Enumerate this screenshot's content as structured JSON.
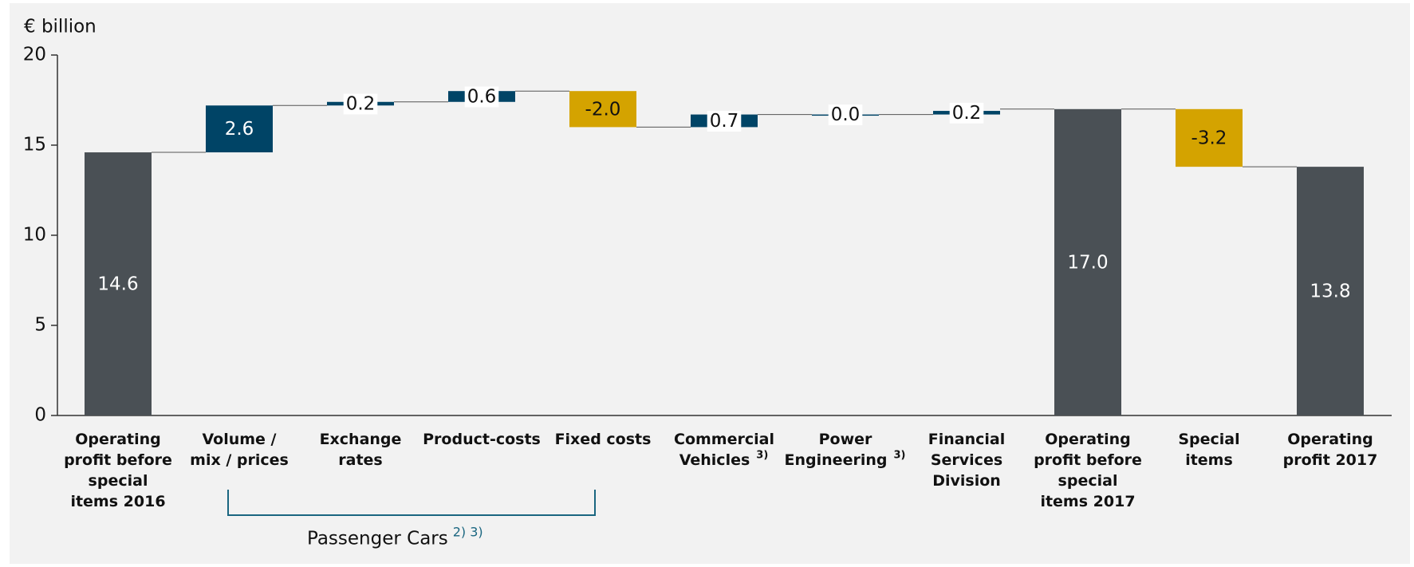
{
  "chart_data": {
    "type": "waterfall",
    "y_label": "€ billion",
    "categories": [
      "Operating profit before special items 2016",
      "Volume / mix / prices",
      "Exchange rates",
      "Product-costs",
      "Fixed costs",
      "Commercial Vehicles",
      "Power Engineering",
      "Financial Services Division",
      "Operating profit before special items 2017",
      "Special items",
      "Operating profit 2017"
    ],
    "category_notes": [
      null,
      null,
      null,
      null,
      null,
      "3)",
      "3)",
      null,
      null,
      null,
      null
    ],
    "values": [
      14.6,
      2.6,
      0.2,
      0.6,
      -2.0,
      0.7,
      0.0,
      0.2,
      17.0,
      -3.2,
      13.8
    ],
    "value_labels": [
      "14.6",
      "2.6",
      "0.2",
      "0.6",
      "-2.0",
      "0.7",
      "0.0",
      "0.2",
      "17.0",
      "-3.2",
      "13.8"
    ],
    "bar_types": [
      "total",
      "delta",
      "delta",
      "delta",
      "delta",
      "delta",
      "delta",
      "delta",
      "total",
      "delta",
      "total"
    ],
    "colors": [
      "#4a5055",
      "#004466",
      "#004466",
      "#004466",
      "#d4a300",
      "#004466",
      "#004466",
      "#004466",
      "#4a5055",
      "#d4a300",
      "#4a5055"
    ],
    "annotation": "Passenger Cars",
    "annotation_note": "2) 3)",
    "annotation_color": "#1a6680",
    "ylim": [
      0,
      20
    ],
    "yticks": [
      0,
      5,
      10,
      15,
      20
    ]
  }
}
